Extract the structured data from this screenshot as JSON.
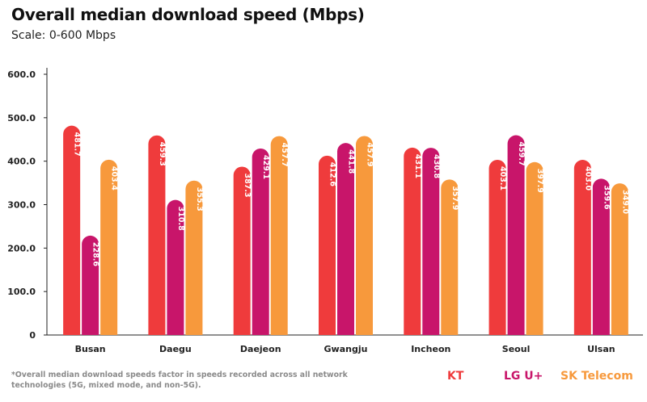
{
  "header": {
    "title": "Overall median download speed (Mbps)",
    "subtitle": "Scale: 0-600 Mbps"
  },
  "footnote": "*Overall median download speeds factor in speeds recorded across all network technologies (5G, mixed mode, and non-5G).",
  "legend": [
    {
      "label": "KT",
      "color": "#ef3b3c"
    },
    {
      "label": "LG U+",
      "color": "#c8156a"
    },
    {
      "label": "SK Telecom",
      "color": "#f7993c"
    }
  ],
  "chart_data": {
    "type": "bar",
    "title": "Overall median download speed (Mbps)",
    "subtitle": "Scale: 0-600 Mbps",
    "categories": [
      "Busan",
      "Daegu",
      "Daejeon",
      "Gwangju",
      "Incheon",
      "Seoul",
      "Ulsan"
    ],
    "series": [
      {
        "name": "KT",
        "color": "#ef3b3c",
        "values": [
          481.7,
          459.3,
          387.3,
          412.6,
          431.1,
          403.1,
          403.0
        ],
        "labels": [
          "481.7",
          "459.3",
          "387.3",
          "412.6",
          "431.1",
          "403.1",
          "403.0"
        ]
      },
      {
        "name": "LG U+",
        "color": "#c8156a",
        "values": [
          228.6,
          310.8,
          429.1,
          441.8,
          430.8,
          459.7,
          359.6
        ],
        "labels": [
          "228.6",
          "310.8",
          "429.1",
          "441.8",
          "430.8",
          "459.7",
          "359.6"
        ]
      },
      {
        "name": "SK Telecom",
        "color": "#f7993c",
        "values": [
          403.4,
          355.3,
          457.7,
          457.9,
          357.9,
          397.9,
          349.0
        ],
        "labels": [
          "403.4",
          "355.3",
          "457.7",
          "457.9",
          "357.9",
          "397.9",
          "349.0"
        ]
      }
    ],
    "yticks": [
      "0",
      "100.0",
      "200.0",
      "300.0",
      "400.0",
      "500.0",
      "600.0"
    ],
    "ylim": [
      0,
      600
    ],
    "xlabel": "",
    "ylabel": "",
    "grid": false,
    "legend_position": "bottom-right"
  }
}
